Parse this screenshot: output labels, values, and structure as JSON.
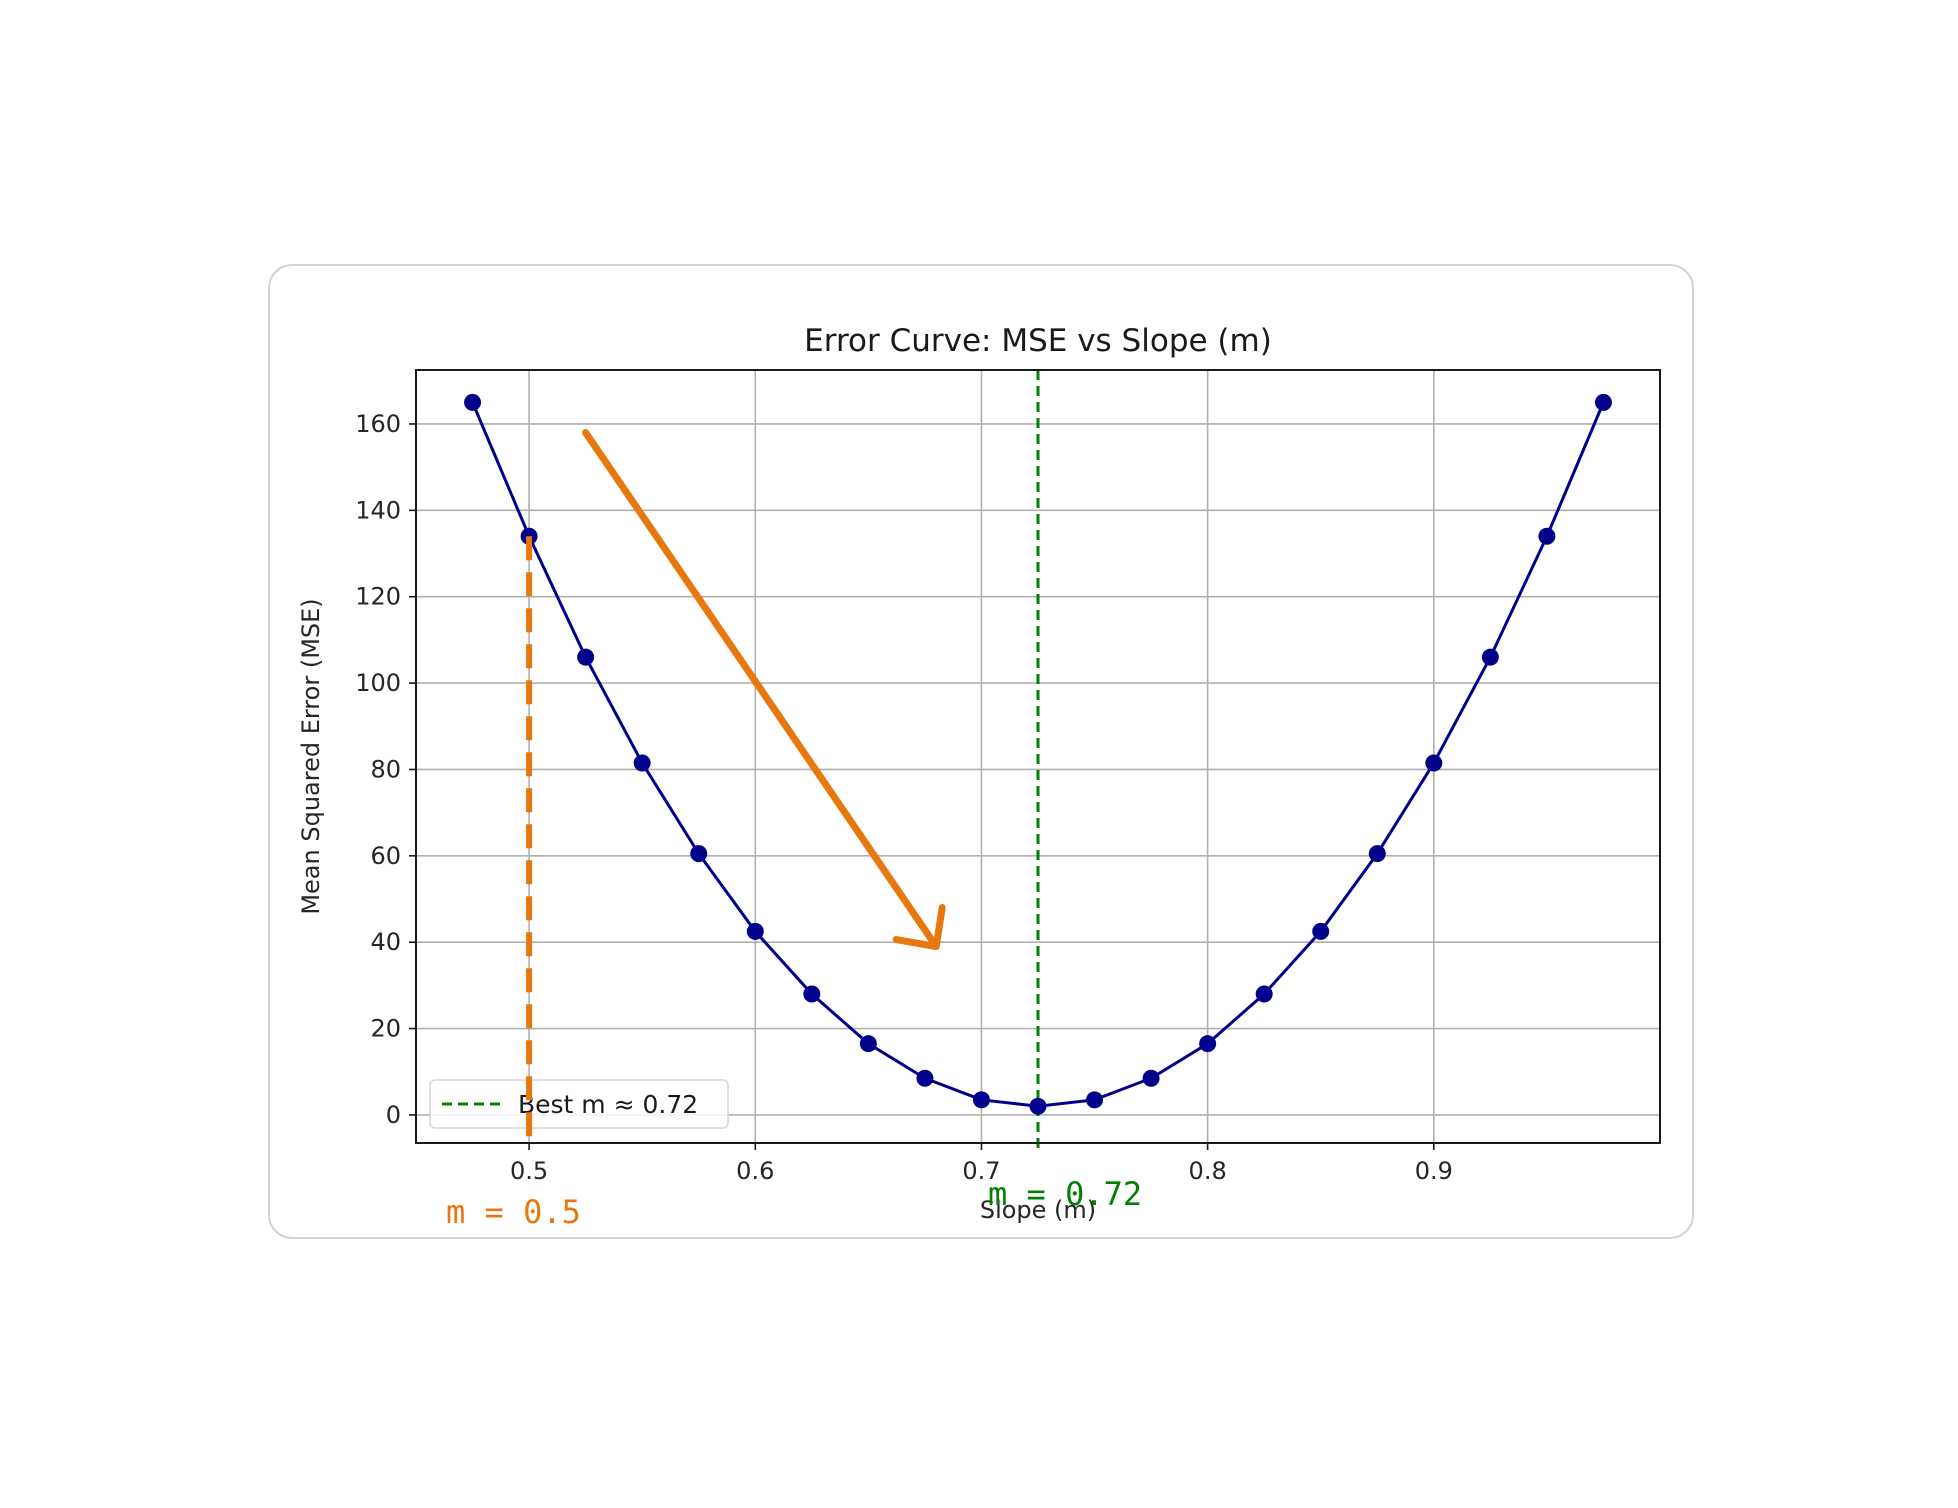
{
  "chart_data": {
    "type": "line",
    "title": "Error Curve: MSE vs Slope (m)",
    "xlabel": "Slope (m)",
    "ylabel": "Mean Squared Error (MSE)",
    "xlim": [
      0.45,
      1.0
    ],
    "ylim": [
      -6.5,
      172.5
    ],
    "xticks": [
      0.5,
      0.6,
      0.7,
      0.8,
      0.9
    ],
    "xtick_labels": [
      "0.5",
      "0.6",
      "0.7",
      "0.8",
      "0.9"
    ],
    "yticks": [
      0,
      20,
      40,
      60,
      80,
      100,
      120,
      140,
      160
    ],
    "ytick_labels": [
      "0",
      "20",
      "40",
      "60",
      "80",
      "100",
      "120",
      "140",
      "160"
    ],
    "grid": true,
    "series": [
      {
        "color": "#00008b",
        "x": [
          0.475,
          0.5,
          0.525,
          0.55,
          0.575,
          0.6,
          0.625,
          0.65,
          0.675,
          0.7,
          0.725,
          0.75,
          0.775,
          0.8,
          0.825,
          0.85,
          0.875,
          0.9,
          0.925,
          0.95,
          0.975
        ],
        "y": [
          165,
          134,
          106,
          81.5,
          60.5,
          42.5,
          28,
          16.5,
          8.5,
          3.5,
          2,
          3.5,
          8.5,
          16.5,
          28,
          42.5,
          60.5,
          81.5,
          106,
          134,
          165
        ]
      }
    ],
    "best_line": {
      "x": 0.725,
      "color": "#008000",
      "legend": "Best m ≈ 0.72"
    },
    "legend_position": "lower-left",
    "annotations": [
      {
        "text": "m = 0.5",
        "color": "#e8770e"
      },
      {
        "text": "m = 0.72",
        "color": "#008000"
      }
    ],
    "arrow": {
      "color": "#e8770e",
      "from": [
        0.525,
        158
      ],
      "to": [
        0.68,
        39
      ]
    },
    "start_marker": {
      "x": 0.5,
      "color": "#e8770e"
    }
  }
}
